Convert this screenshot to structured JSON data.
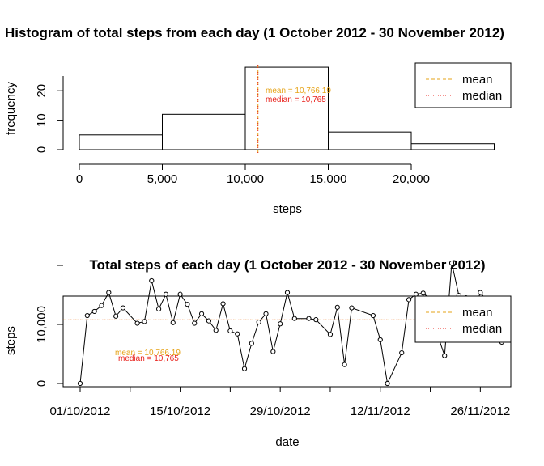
{
  "colors": {
    "mean": "#e6a317",
    "median": "#e8201a",
    "line": "#000000"
  },
  "chart_data": [
    {
      "type": "bar",
      "title": "Histogram of total steps from each day (1 October 2012 - 30 November 2012)",
      "xlabel": "steps",
      "ylabel": "frequency",
      "bins": [
        {
          "from": 0,
          "to": 5000,
          "count": 5
        },
        {
          "from": 5000,
          "to": 10000,
          "count": 12
        },
        {
          "from": 10000,
          "to": 15000,
          "count": 28
        },
        {
          "from": 15000,
          "to": 20000,
          "count": 6
        },
        {
          "from": 20000,
          "to": 25000,
          "count": 2
        }
      ],
      "xlim": [
        0,
        25000
      ],
      "ylim": [
        0,
        25
      ],
      "xticks": [
        0,
        5000,
        10000,
        15000,
        20000
      ],
      "xtick_labels": [
        "0",
        "5,000",
        "10,000",
        "15,000",
        "20,000"
      ],
      "yticks": [
        0,
        10,
        20
      ],
      "ytick_labels": [
        "0",
        "10",
        "20"
      ],
      "mean": 10766.19,
      "median": 10765,
      "mean_label": "mean =  10,766.19",
      "median_label": "median =  10,765",
      "legend": [
        "mean",
        "median"
      ],
      "legend_position": "top-right"
    },
    {
      "type": "line",
      "title": "Total steps of each day (1 October 2012 - 30 November 2012)",
      "xlabel": "date",
      "ylabel": "steps",
      "start_date": "2012-10-01",
      "dates": [
        "2012-10-01",
        "2012-10-02",
        "2012-10-03",
        "2012-10-04",
        "2012-10-05",
        "2012-10-06",
        "2012-10-07",
        "2012-10-09",
        "2012-10-10",
        "2012-10-11",
        "2012-10-12",
        "2012-10-13",
        "2012-10-14",
        "2012-10-15",
        "2012-10-16",
        "2012-10-17",
        "2012-10-18",
        "2012-10-19",
        "2012-10-20",
        "2012-10-21",
        "2012-10-22",
        "2012-10-23",
        "2012-10-24",
        "2012-10-25",
        "2012-10-26",
        "2012-10-27",
        "2012-10-28",
        "2012-10-29",
        "2012-10-30",
        "2012-10-31",
        "2012-11-02",
        "2012-11-03",
        "2012-11-05",
        "2012-11-06",
        "2012-11-07",
        "2012-11-08",
        "2012-11-11",
        "2012-11-12",
        "2012-11-13",
        "2012-11-15",
        "2012-11-16",
        "2012-11-17",
        "2012-11-18",
        "2012-11-19",
        "2012-11-20",
        "2012-11-21",
        "2012-11-22",
        "2012-11-23",
        "2012-11-24",
        "2012-11-25",
        "2012-11-26",
        "2012-11-27",
        "2012-11-28",
        "2012-11-29"
      ],
      "values": [
        0,
        11500,
        12200,
        13200,
        15400,
        11400,
        12800,
        10200,
        10500,
        17400,
        12600,
        15100,
        10300,
        15100,
        13400,
        10200,
        11800,
        10600,
        9000,
        13500,
        8900,
        8400,
        2500,
        6800,
        10400,
        11800,
        5400,
        10100,
        15400,
        11000,
        11000,
        10800,
        8300,
        12900,
        3200,
        12800,
        11500,
        7400,
        0,
        5200,
        14200,
        15100,
        15300,
        14300,
        8300,
        4700,
        20400,
        14900,
        14500,
        11800,
        15400,
        13900,
        10200,
        7000
      ],
      "xtick_labels": [
        "01/10/2012",
        "15/10/2012",
        "29/10/2012",
        "12/11/2012",
        "26/11/2012"
      ],
      "ytick_labels": [
        "0",
        "10,000"
      ],
      "ylim": [
        0,
        22000
      ],
      "mean": 10766.19,
      "median": 10765,
      "mean_label": "mean =  10,766.19",
      "median_label": "median =  10,765",
      "legend": [
        "mean",
        "median"
      ],
      "legend_position": "top-right"
    }
  ]
}
